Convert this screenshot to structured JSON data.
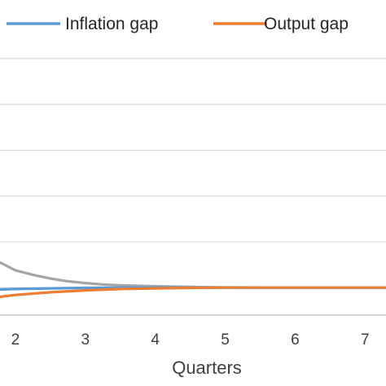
{
  "chart_data": {
    "type": "line",
    "title": "",
    "xlabel": "Quarters",
    "ylabel": "",
    "x": [
      2,
      3,
      4,
      5,
      6,
      7
    ],
    "xlim": [
      1.78,
      7.3
    ],
    "ylim": [
      -0.6,
      5.3
    ],
    "grid": true,
    "legend_position": "top",
    "series": [
      {
        "name": "Inflation gap",
        "color": "#5b9bd5",
        "points": [
          [
            1.78,
            -0.04
          ],
          [
            2,
            -0.03
          ],
          [
            2.5,
            -0.015
          ],
          [
            3,
            -0.005
          ],
          [
            3.5,
            0
          ],
          [
            4,
            0
          ],
          [
            5,
            0
          ],
          [
            6,
            0
          ],
          [
            7,
            0
          ],
          [
            7.3,
            0
          ]
        ]
      },
      {
        "name": "Output gap",
        "color": "#ed7d31",
        "points": [
          [
            1.78,
            -0.2
          ],
          [
            2,
            -0.16
          ],
          [
            2.5,
            -0.1
          ],
          [
            3,
            -0.06
          ],
          [
            3.5,
            -0.03
          ],
          [
            4,
            -0.015
          ],
          [
            4.5,
            -0.005
          ],
          [
            5,
            0
          ],
          [
            6,
            0
          ],
          [
            7,
            0
          ],
          [
            7.3,
            0
          ]
        ]
      },
      {
        "name": "",
        "color": "#a5a5a5",
        "points": [
          [
            1.78,
            0.55
          ],
          [
            2,
            0.38
          ],
          [
            2.25,
            0.28
          ],
          [
            2.5,
            0.2
          ],
          [
            2.75,
            0.14
          ],
          [
            3,
            0.1
          ],
          [
            3.25,
            0.07
          ],
          [
            3.5,
            0.05
          ],
          [
            4,
            0.03
          ],
          [
            4.5,
            0.015
          ],
          [
            5,
            0.005
          ],
          [
            5.5,
            0.002
          ],
          [
            6,
            0
          ],
          [
            7,
            0
          ],
          [
            7.3,
            0
          ]
        ]
      }
    ]
  }
}
